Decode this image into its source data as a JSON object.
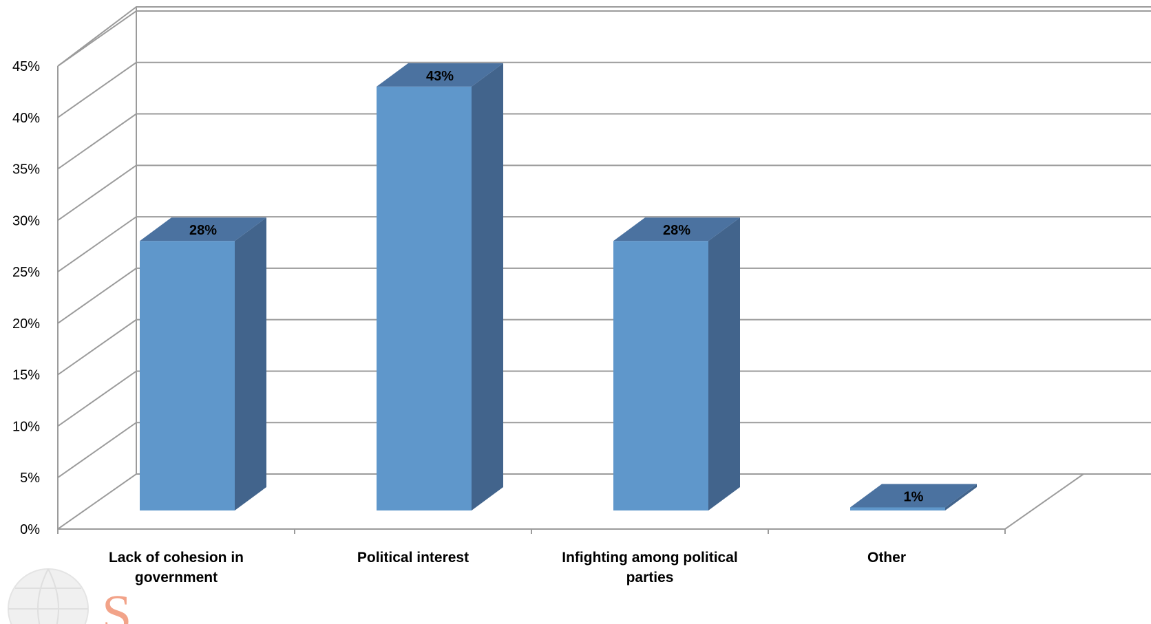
{
  "chart_data": {
    "type": "bar",
    "title": "",
    "xlabel": "",
    "ylabel": "",
    "categories": [
      [
        "Lack of cohesion in",
        "government"
      ],
      [
        "Political interest"
      ],
      [
        "Infighting among political",
        "parties"
      ],
      [
        "Other"
      ]
    ],
    "values": [
      28,
      43,
      28,
      1
    ],
    "value_labels": [
      "28%",
      "43%",
      "28%",
      "1%"
    ],
    "ylim": [
      0,
      45
    ],
    "yticks": [
      0,
      5,
      10,
      15,
      20,
      25,
      30,
      35,
      40,
      45
    ],
    "ytick_labels": [
      "0%",
      "5%",
      "10%",
      "15%",
      "20%",
      "25%",
      "30%",
      "35%",
      "40%",
      "45%"
    ],
    "grid": true,
    "style": "3d-column",
    "colors": {
      "front": "#5f97cb",
      "top": "#4b72a0",
      "side": "#42648c",
      "grid": "#9b9b9b"
    }
  },
  "watermark": {
    "text": "S"
  }
}
